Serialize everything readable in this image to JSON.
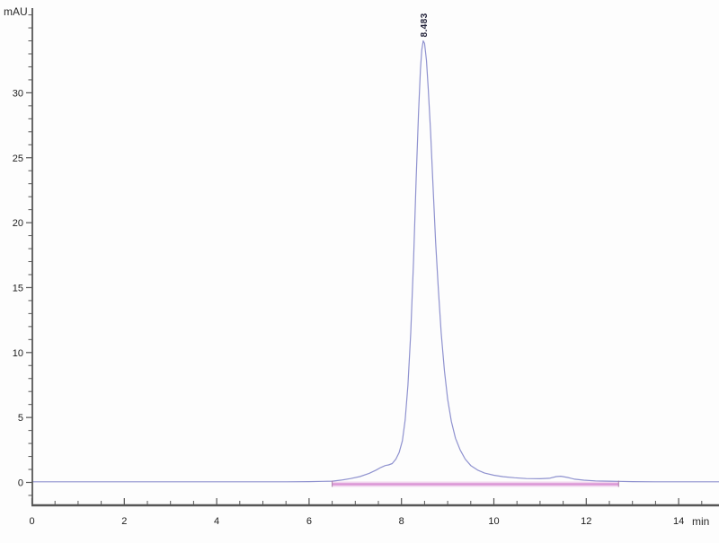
{
  "chart_data": {
    "type": "line",
    "title": "",
    "xlabel": "min",
    "ylabel": "mAU",
    "xlim": [
      0,
      14.9
    ],
    "ylim": [
      -1.8,
      36.7
    ],
    "grid": false,
    "legend": "none",
    "x_major_ticks": [
      0,
      2,
      4,
      6,
      8,
      10,
      12,
      14
    ],
    "x_minor_step": 0.5,
    "y_major_ticks": [
      0,
      5,
      10,
      15,
      20,
      25,
      30
    ],
    "y_minor_step": 1,
    "series": [
      {
        "name": "detector-signal",
        "color": "#8f92cf",
        "points": [
          [
            0.0,
            0.05
          ],
          [
            0.5,
            0.05
          ],
          [
            1.0,
            0.05
          ],
          [
            1.5,
            0.05
          ],
          [
            2.0,
            0.05
          ],
          [
            2.5,
            0.05
          ],
          [
            3.0,
            0.05
          ],
          [
            3.5,
            0.05
          ],
          [
            4.0,
            0.05
          ],
          [
            4.5,
            0.05
          ],
          [
            5.0,
            0.05
          ],
          [
            5.5,
            0.05
          ],
          [
            6.0,
            0.06
          ],
          [
            6.3,
            0.08
          ],
          [
            6.5,
            0.1
          ],
          [
            6.7,
            0.18
          ],
          [
            6.9,
            0.3
          ],
          [
            7.1,
            0.45
          ],
          [
            7.3,
            0.7
          ],
          [
            7.45,
            0.95
          ],
          [
            7.55,
            1.15
          ],
          [
            7.65,
            1.3
          ],
          [
            7.72,
            1.35
          ],
          [
            7.8,
            1.45
          ],
          [
            7.88,
            1.8
          ],
          [
            7.95,
            2.3
          ],
          [
            8.02,
            3.2
          ],
          [
            8.08,
            4.8
          ],
          [
            8.14,
            7.5
          ],
          [
            8.2,
            11.5
          ],
          [
            8.26,
            17.0
          ],
          [
            8.32,
            23.5
          ],
          [
            8.37,
            28.5
          ],
          [
            8.41,
            31.8
          ],
          [
            8.44,
            33.3
          ],
          [
            8.47,
            34.0
          ],
          [
            8.5,
            33.8
          ],
          [
            8.54,
            32.5
          ],
          [
            8.58,
            30.3
          ],
          [
            8.63,
            27.0
          ],
          [
            8.68,
            23.0
          ],
          [
            8.74,
            18.5
          ],
          [
            8.8,
            14.8
          ],
          [
            8.86,
            11.5
          ],
          [
            8.93,
            8.6
          ],
          [
            9.0,
            6.4
          ],
          [
            9.08,
            4.7
          ],
          [
            9.17,
            3.4
          ],
          [
            9.27,
            2.5
          ],
          [
            9.38,
            1.8
          ],
          [
            9.5,
            1.3
          ],
          [
            9.65,
            0.95
          ],
          [
            9.8,
            0.72
          ],
          [
            10.0,
            0.55
          ],
          [
            10.2,
            0.44
          ],
          [
            10.45,
            0.36
          ],
          [
            10.7,
            0.3
          ],
          [
            11.0,
            0.28
          ],
          [
            11.2,
            0.32
          ],
          [
            11.35,
            0.45
          ],
          [
            11.45,
            0.48
          ],
          [
            11.6,
            0.38
          ],
          [
            11.75,
            0.25
          ],
          [
            11.95,
            0.17
          ],
          [
            12.2,
            0.12
          ],
          [
            12.5,
            0.1
          ],
          [
            12.7,
            0.08
          ],
          [
            13.0,
            0.06
          ],
          [
            13.5,
            0.05
          ],
          [
            14.0,
            0.05
          ],
          [
            14.5,
            0.05
          ],
          [
            14.88,
            0.05
          ]
        ]
      }
    ],
    "integration_baseline": {
      "name": "integration-baseline",
      "color": "#db97d6",
      "halo_color": "#f2d7ef",
      "marker_color": "#a87ba5",
      "from_min": 6.5,
      "to_min": 12.7,
      "level_mAU": 0
    },
    "peaks": [
      {
        "retention_time_min": 8.483,
        "label": "8.483",
        "height_mAU": 34.0
      }
    ],
    "axis_color": "#565656"
  }
}
